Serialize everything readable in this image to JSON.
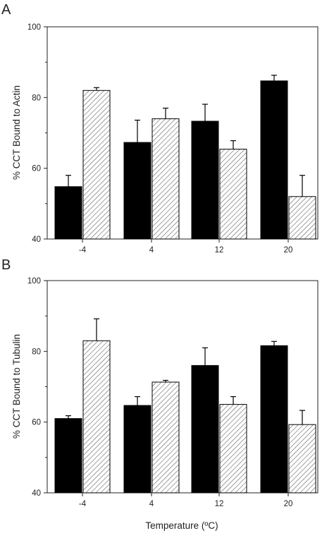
{
  "figure": {
    "xlabel": "Temperature (ºC)"
  },
  "chart_data": [
    {
      "type": "bar",
      "panel": "A",
      "ylabel": "% CCT Bound to Actin",
      "xlabel": "",
      "categories": [
        "-4",
        "4",
        "12",
        "20"
      ],
      "ylim": [
        40,
        100
      ],
      "yticks": [
        "40",
        "60",
        "80",
        "100"
      ],
      "series": [
        {
          "fill": "solid",
          "color": "#000000",
          "values": [
            54.8,
            67.3,
            73.3,
            84.7
          ],
          "errors": [
            3.2,
            6.3,
            4.8,
            1.6
          ]
        },
        {
          "fill": "hatched",
          "color": "#ffffff",
          "values": [
            82.0,
            74.0,
            65.4,
            52.0
          ],
          "errors": [
            0.8,
            3.0,
            2.4,
            6.0
          ]
        }
      ]
    },
    {
      "type": "bar",
      "panel": "B",
      "ylabel": "% CCT Bound to Tubulin",
      "xlabel": "Temperature (ºC)",
      "categories": [
        "-4",
        "4",
        "12",
        "20"
      ],
      "ylim": [
        40,
        100
      ],
      "yticks": [
        "40",
        "60",
        "80",
        "100"
      ],
      "series": [
        {
          "fill": "solid",
          "color": "#000000",
          "values": [
            61.0,
            64.7,
            76.0,
            81.6
          ],
          "errors": [
            0.8,
            2.5,
            5.0,
            1.2
          ]
        },
        {
          "fill": "hatched",
          "color": "#ffffff",
          "values": [
            83.0,
            71.3,
            65.0,
            59.3
          ],
          "errors": [
            6.2,
            0.5,
            2.2,
            4.0
          ]
        }
      ]
    }
  ]
}
